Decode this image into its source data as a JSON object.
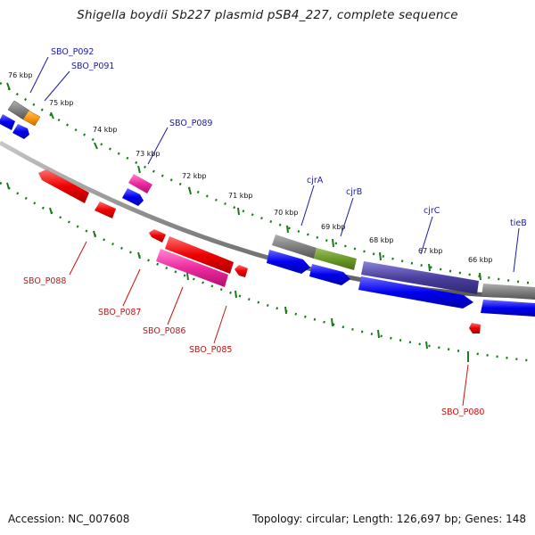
{
  "title": "Shigella boydii Sb227 plasmid pSB4_227, complete sequence",
  "footer": {
    "accession": "Accession: NC_007608",
    "summary": "Topology: circular; Length: 126,697 bp; Genes: 148"
  },
  "colors": {
    "forward_label": "#1a1aa8",
    "reverse_label": "#cc1111",
    "backbone": "#8a8a8a",
    "tick_mark": "#1a7a1a"
  },
  "ticks": [
    "76 kbp",
    "75 kbp",
    "74 kbp",
    "73 kbp",
    "72 kbp",
    "71 kbp",
    "70 kbp",
    "69 kbp",
    "68 kbp",
    "67 kbp",
    "66 kbp"
  ],
  "genes_forward": [
    "SBO_P092",
    "SBO_P091",
    "SBO_P089",
    "cjrA",
    "cjrB",
    "cjrC",
    "tieB"
  ],
  "genes_reverse": [
    "SBO_P088",
    "SBO_P087",
    "SBO_P086",
    "SBO_P085",
    "SBO_P080"
  ]
}
